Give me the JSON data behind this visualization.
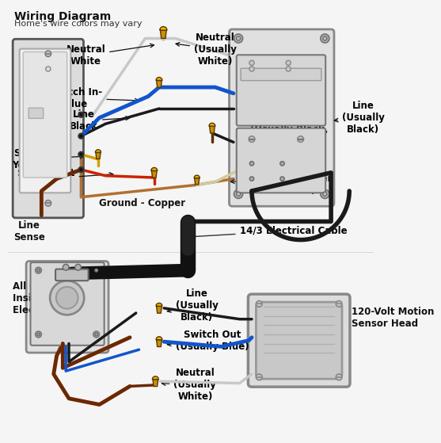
{
  "title": "Wiring Diagram",
  "subtitle": "Home's wire colors may vary",
  "bg_color": "#f5f5f5",
  "labels": {
    "neutral_white": "Neutral\nWhite",
    "neutral_usually_white": "Neutral\n(Usually\nWhite)",
    "switch_in_blue": "Switch In-\nBlue",
    "line_black": "Line\nBlack",
    "sense_yellow": "Sense\nYellow",
    "switch_out_red": "Switch Out\nRed",
    "line_sense": "Line\nSense",
    "ground_copper": "Ground - Copper",
    "load": "Load\n(Usually Black,\nRed, or Blue)",
    "ground_usually": "Ground\n(Usually Copper\nor Green)",
    "line_usually_black": "Line\n(Usually\nBlack)",
    "cable_label": "14/3 Electrical Cable",
    "all_connections": "All Connections\nInside An\nElectrical Box",
    "line_usually_black2": "Line\n(Usually\nBlack)",
    "switch_out_usually_blue": "Switch Out\n(Usually Blue)",
    "neutral_usually_white2": "Neutral\n(Usually\nWhite)",
    "motion_sensor": "120-Volt Motion\nSensor Head"
  },
  "wire_colors": {
    "black": "#1a1a1a",
    "white": "#c8c8c8",
    "blue": "#1155cc",
    "yellow": "#d4a000",
    "red": "#cc2200",
    "copper": "#b07030",
    "brown": "#6b2800",
    "dark_red": "#8B1a00"
  },
  "nut_color": "#c8900a",
  "nut_tip_color": "#e8b800"
}
